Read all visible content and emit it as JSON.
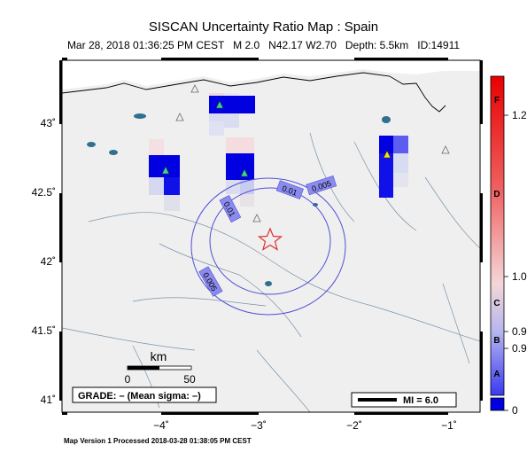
{
  "header": {
    "title": "SISCAN Uncertainty Ratio Map : Spain",
    "subtitle": "Mar 28, 2018 01:36:25 PM CEST   M 2.0   N42.17 W2.70   Depth: 5.5km   ID:14911"
  },
  "map": {
    "lat_labels": [
      "43˚",
      "42.5˚",
      "42˚",
      "41.5˚",
      "41˚"
    ],
    "lon_labels": [
      "−4˚",
      "−3˚",
      "−2˚",
      "−1˚"
    ],
    "contour_labels": [
      "0.01",
      "0.01",
      "0.005",
      "0.005"
    ],
    "epicenter": {
      "lat": 42.17,
      "lon": -2.7
    }
  },
  "scalebar": {
    "title": "km",
    "tick_start": "0",
    "tick_end": "50"
  },
  "grade": {
    "text": "GRADE: – (Mean sigma: –)"
  },
  "mi_legend": {
    "label": "MI = 6.0"
  },
  "colorbar": {
    "letters": [
      "F",
      "D",
      "C",
      "B",
      "A"
    ],
    "values": [
      "1.2",
      "1.0",
      "0.9",
      "0.9",
      "0"
    ]
  },
  "footer": {
    "processed": "Map Version 1 Processed 2018-03-28 01:38:05 PM CEST"
  },
  "colors": {
    "land": "#efefef",
    "water": "#2f6f8f",
    "contour": "#4f4fd9",
    "epicenter": "#e03030",
    "cell_blue": "#0000e0"
  }
}
